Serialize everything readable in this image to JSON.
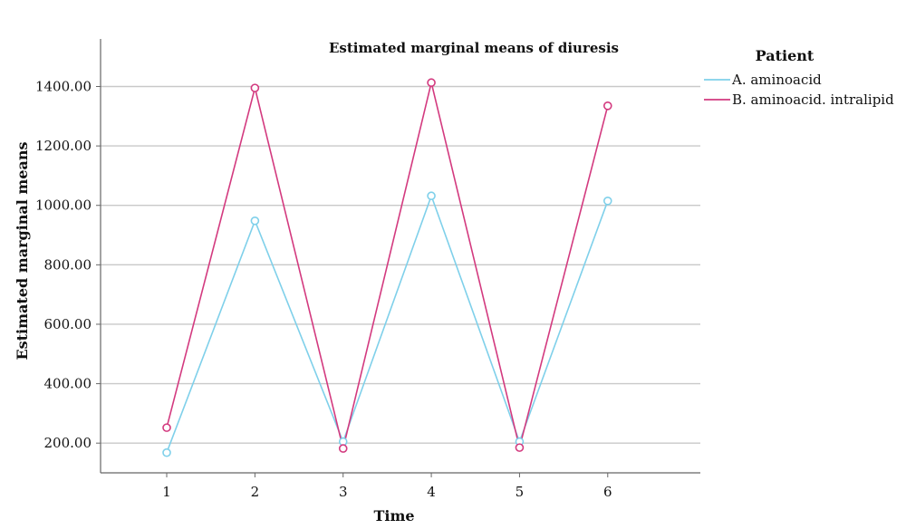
{
  "chart_data": {
    "type": "line",
    "title": "Estimated marginal means of diuresis",
    "xlabel": "Time",
    "ylabel": "Estimated marginal means",
    "categories": [
      "1",
      "2",
      "3",
      "4",
      "5",
      "6"
    ],
    "x": [
      1,
      2,
      3,
      4,
      5,
      6
    ],
    "xlim": [
      0.25,
      7.05
    ],
    "ylim": [
      100,
      1560
    ],
    "yticks": [
      200,
      400,
      600,
      800,
      1000,
      1200,
      1400
    ],
    "ytick_labels": [
      "200.00",
      "400.00",
      "600.00",
      "800.00",
      "1000.00",
      "1200.00",
      "1400.00"
    ],
    "grid": "horizontal",
    "legend_title": "Patient",
    "legend_position": "top-right outside",
    "series": [
      {
        "name": "A. aminoacid",
        "color": "#7fd0ea",
        "values": [
          168,
          948,
          205,
          1032,
          205,
          1015
        ]
      },
      {
        "name": "B. aminoacid. intralipid",
        "color": "#d33a7f",
        "values": [
          252,
          1395,
          182,
          1413,
          185,
          1335
        ]
      }
    ]
  }
}
